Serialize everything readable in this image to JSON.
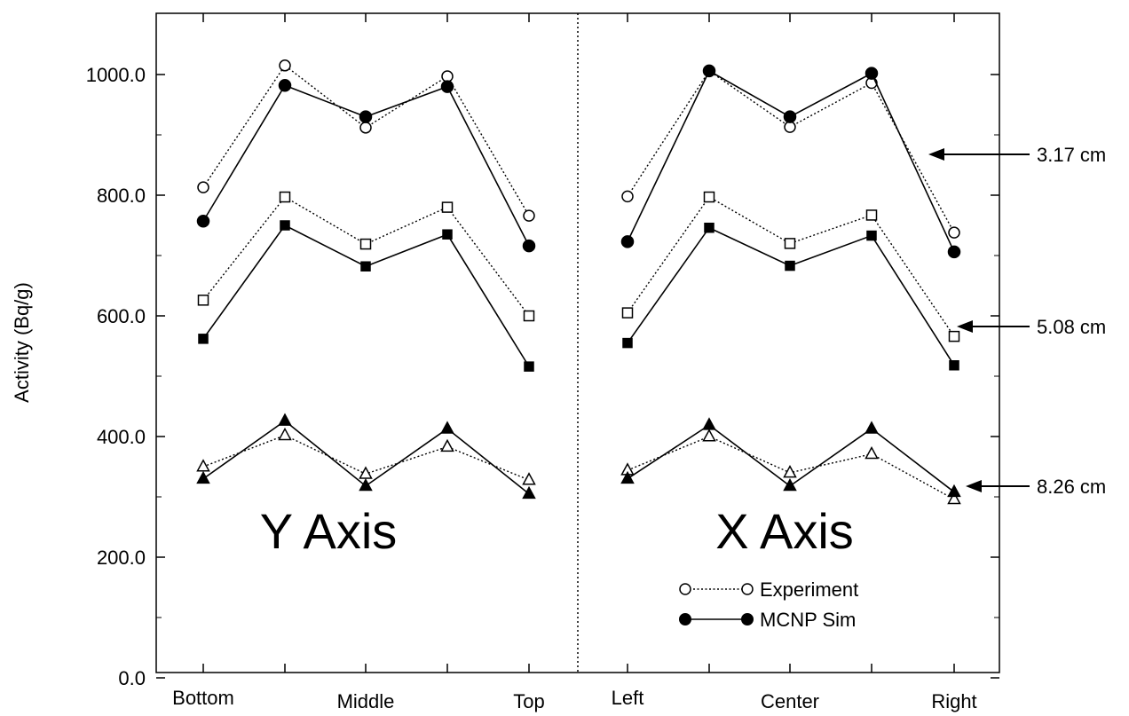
{
  "chart_data": {
    "type": "line",
    "ylabel": "Activity (Bq/g)",
    "ylim": [
      0,
      1100
    ],
    "yticks": [
      "0.0",
      "200.0",
      "400.0",
      "600.0",
      "800.0",
      "1000.0"
    ],
    "ytick_values": [
      0,
      200,
      400,
      600,
      800,
      1000
    ],
    "panels": [
      {
        "title": "Y Axis",
        "categories": [
          "Bottom",
          "Middle",
          "Top"
        ],
        "x": [
          1,
          2,
          3,
          4,
          5
        ]
      },
      {
        "title": "X Axis",
        "categories": [
          "Left",
          "Center",
          "Right"
        ],
        "x": [
          1,
          2,
          3,
          4,
          5
        ]
      }
    ],
    "legend": {
      "experiment": "Experiment",
      "sim": "MCNP Sim"
    },
    "annotations": [
      "3.17 cm",
      "5.08 cm",
      "8.26 cm"
    ],
    "series": [
      {
        "depth": "3.17 cm",
        "kind": "experiment",
        "marker": "circle",
        "panel": 0,
        "values": [
          813,
          1015,
          912,
          997,
          766
        ]
      },
      {
        "depth": "3.17 cm",
        "kind": "sim",
        "marker": "circle",
        "panel": 0,
        "values": [
          757,
          982,
          930,
          980,
          716
        ]
      },
      {
        "depth": "5.08 cm",
        "kind": "experiment",
        "marker": "square",
        "panel": 0,
        "values": [
          626,
          797,
          719,
          780,
          600
        ]
      },
      {
        "depth": "5.08 cm",
        "kind": "sim",
        "marker": "square",
        "panel": 0,
        "values": [
          562,
          750,
          682,
          735,
          516
        ]
      },
      {
        "depth": "8.26 cm",
        "kind": "experiment",
        "marker": "triangle",
        "panel": 0,
        "values": [
          350,
          402,
          338,
          383,
          328
        ]
      },
      {
        "depth": "8.26 cm",
        "kind": "sim",
        "marker": "triangle",
        "panel": 0,
        "values": [
          330,
          426,
          318,
          413,
          305
        ]
      },
      {
        "depth": "3.17 cm",
        "kind": "experiment",
        "marker": "circle",
        "panel": 1,
        "values": [
          798,
          1006,
          913,
          986,
          738
        ]
      },
      {
        "depth": "3.17 cm",
        "kind": "sim",
        "marker": "circle",
        "panel": 1,
        "values": [
          723,
          1006,
          930,
          1002,
          706
        ]
      },
      {
        "depth": "5.08 cm",
        "kind": "experiment",
        "marker": "square",
        "panel": 1,
        "values": [
          605,
          797,
          720,
          767,
          566
        ]
      },
      {
        "depth": "5.08 cm",
        "kind": "sim",
        "marker": "square",
        "panel": 1,
        "values": [
          555,
          746,
          683,
          733,
          518
        ]
      },
      {
        "depth": "8.26 cm",
        "kind": "experiment",
        "marker": "triangle",
        "panel": 1,
        "values": [
          344,
          400,
          340,
          371,
          296
        ]
      },
      {
        "depth": "8.26 cm",
        "kind": "sim",
        "marker": "triangle",
        "panel": 1,
        "values": [
          330,
          419,
          318,
          413,
          308
        ]
      }
    ]
  }
}
